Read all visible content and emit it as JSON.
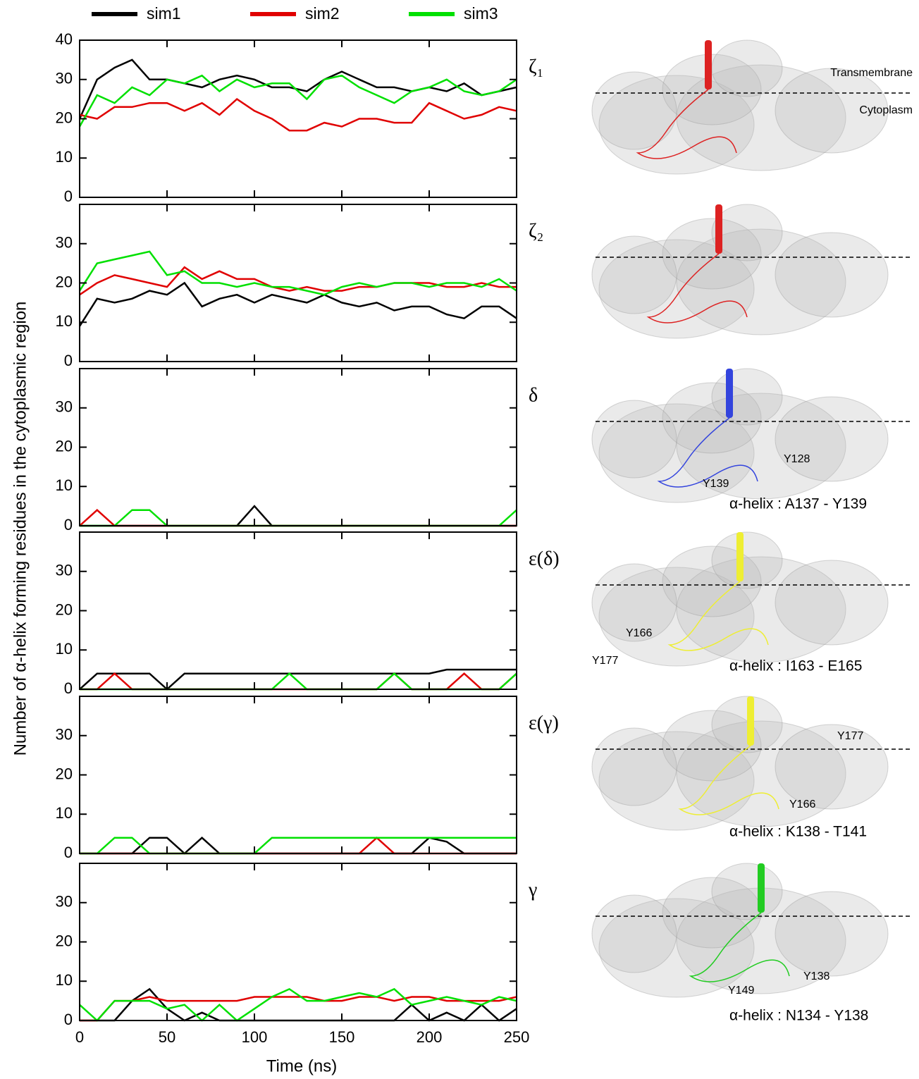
{
  "legend": {
    "series": [
      {
        "name": "sim1",
        "color": "#000000"
      },
      {
        "name": "sim2",
        "color": "#e00000"
      },
      {
        "name": "sim3",
        "color": "#00e000"
      }
    ]
  },
  "ylabel": "Number of α-helix forming residues in the cytoplasmic region",
  "xlabel": "Time (ns)",
  "chart_data": [
    {
      "type": "line",
      "label": "ζ₁",
      "annotations": [
        "Transmembrane",
        "Cytoplasm"
      ],
      "x": [
        0,
        10,
        20,
        30,
        40,
        50,
        60,
        70,
        80,
        90,
        100,
        110,
        120,
        130,
        140,
        150,
        160,
        170,
        180,
        190,
        200,
        210,
        220,
        230,
        240,
        250
      ],
      "xlim": [
        0,
        250
      ],
      "xticks": [
        0,
        50,
        100,
        150,
        200,
        250
      ],
      "ylim": [
        0,
        40
      ],
      "yticks": [
        0,
        10,
        20,
        30,
        40
      ],
      "series": [
        {
          "values": [
            20,
            30,
            33,
            35,
            30,
            30,
            29,
            28,
            30,
            31,
            30,
            28,
            28,
            27,
            30,
            32,
            30,
            28,
            28,
            27,
            28,
            27,
            29,
            26,
            27,
            28
          ]
        },
        {
          "values": [
            21,
            20,
            23,
            23,
            24,
            24,
            22,
            24,
            21,
            25,
            22,
            20,
            17,
            17,
            19,
            18,
            20,
            20,
            19,
            19,
            24,
            22,
            20,
            21,
            23,
            22
          ]
        },
        {
          "values": [
            18,
            26,
            24,
            28,
            26,
            30,
            29,
            31,
            27,
            30,
            28,
            29,
            29,
            25,
            30,
            31,
            28,
            26,
            24,
            27,
            28,
            30,
            27,
            26,
            27,
            30
          ]
        }
      ]
    },
    {
      "type": "line",
      "label": "ζ₂",
      "annotations": [],
      "x": [
        0,
        10,
        20,
        30,
        40,
        50,
        60,
        70,
        80,
        90,
        100,
        110,
        120,
        130,
        140,
        150,
        160,
        170,
        180,
        190,
        200,
        210,
        220,
        230,
        240,
        250
      ],
      "xlim": [
        0,
        250
      ],
      "xticks": [
        0,
        50,
        100,
        150,
        200,
        250
      ],
      "ylim": [
        0,
        40
      ],
      "yticks": [
        0,
        10,
        20,
        30
      ],
      "series": [
        {
          "values": [
            9,
            16,
            15,
            16,
            18,
            17,
            20,
            14,
            16,
            17,
            15,
            17,
            16,
            15,
            17,
            15,
            14,
            15,
            13,
            14,
            14,
            12,
            11,
            14,
            14,
            11
          ]
        },
        {
          "values": [
            17,
            20,
            22,
            21,
            20,
            19,
            24,
            21,
            23,
            21,
            21,
            19,
            18,
            19,
            18,
            18,
            19,
            19,
            20,
            20,
            20,
            19,
            19,
            20,
            19,
            19
          ]
        },
        {
          "values": [
            18,
            25,
            26,
            27,
            28,
            22,
            23,
            20,
            20,
            19,
            20,
            19,
            19,
            18,
            17,
            19,
            20,
            19,
            20,
            20,
            19,
            20,
            20,
            19,
            21,
            18
          ]
        }
      ]
    },
    {
      "type": "line",
      "label": "δ",
      "annotations": [
        "Y128",
        "Y139",
        "α-helix : A137 - Y139"
      ],
      "x": [
        0,
        10,
        20,
        30,
        40,
        50,
        60,
        70,
        80,
        90,
        100,
        110,
        120,
        130,
        140,
        150,
        160,
        170,
        180,
        190,
        200,
        210,
        220,
        230,
        240,
        250
      ],
      "xlim": [
        0,
        250
      ],
      "xticks": [
        0,
        50,
        100,
        150,
        200,
        250
      ],
      "ylim": [
        0,
        40
      ],
      "yticks": [
        0,
        10,
        20,
        30
      ],
      "series": [
        {
          "values": [
            0,
            0,
            0,
            0,
            0,
            0,
            0,
            0,
            0,
            0,
            5,
            0,
            0,
            0,
            0,
            0,
            0,
            0,
            0,
            0,
            0,
            0,
            0,
            0,
            0,
            0
          ]
        },
        {
          "values": [
            0,
            4,
            0,
            0,
            0,
            0,
            0,
            0,
            0,
            0,
            0,
            0,
            0,
            0,
            0,
            0,
            0,
            0,
            0,
            0,
            0,
            0,
            0,
            0,
            0,
            0
          ]
        },
        {
          "values": [
            0,
            0,
            0,
            4,
            4,
            0,
            0,
            0,
            0,
            0,
            0,
            0,
            0,
            0,
            0,
            0,
            0,
            0,
            0,
            0,
            0,
            0,
            0,
            0,
            0,
            4
          ]
        }
      ]
    },
    {
      "type": "line",
      "label": "ε(δ)",
      "annotations": [
        "Y166",
        "Y177",
        "α-helix : I163 - E165"
      ],
      "x": [
        0,
        10,
        20,
        30,
        40,
        50,
        60,
        70,
        80,
        90,
        100,
        110,
        120,
        130,
        140,
        150,
        160,
        170,
        180,
        190,
        200,
        210,
        220,
        230,
        240,
        250
      ],
      "xlim": [
        0,
        250
      ],
      "xticks": [
        0,
        50,
        100,
        150,
        200,
        250
      ],
      "ylim": [
        0,
        40
      ],
      "yticks": [
        0,
        10,
        20,
        30
      ],
      "series": [
        {
          "values": [
            0,
            4,
            4,
            4,
            4,
            0,
            4,
            4,
            4,
            4,
            4,
            4,
            4,
            4,
            4,
            4,
            4,
            4,
            4,
            4,
            4,
            5,
            5,
            5,
            5,
            5
          ]
        },
        {
          "values": [
            0,
            0,
            4,
            0,
            0,
            0,
            0,
            0,
            0,
            0,
            0,
            0,
            0,
            0,
            0,
            0,
            0,
            0,
            4,
            0,
            0,
            0,
            4,
            0,
            0,
            4
          ]
        },
        {
          "values": [
            0,
            0,
            0,
            0,
            0,
            0,
            0,
            0,
            0,
            0,
            0,
            0,
            4,
            0,
            0,
            0,
            0,
            0,
            4,
            0,
            0,
            0,
            0,
            0,
            0,
            4
          ]
        }
      ]
    },
    {
      "type": "line",
      "label": "ε(γ)",
      "annotations": [
        "Y177",
        "Y166",
        "α-helix : K138 - T141"
      ],
      "x": [
        0,
        10,
        20,
        30,
        40,
        50,
        60,
        70,
        80,
        90,
        100,
        110,
        120,
        130,
        140,
        150,
        160,
        170,
        180,
        190,
        200,
        210,
        220,
        230,
        240,
        250
      ],
      "xlim": [
        0,
        250
      ],
      "xticks": [
        0,
        50,
        100,
        150,
        200,
        250
      ],
      "ylim": [
        0,
        40
      ],
      "yticks": [
        0,
        10,
        20,
        30
      ],
      "series": [
        {
          "values": [
            0,
            0,
            0,
            0,
            4,
            4,
            0,
            4,
            0,
            0,
            0,
            0,
            0,
            0,
            0,
            0,
            0,
            0,
            0,
            0,
            4,
            3,
            0,
            0,
            0,
            0
          ]
        },
        {
          "values": [
            0,
            0,
            0,
            0,
            0,
            0,
            0,
            0,
            0,
            0,
            0,
            0,
            0,
            0,
            0,
            0,
            0,
            4,
            0,
            0,
            0,
            0,
            0,
            0,
            0,
            0
          ]
        },
        {
          "values": [
            0,
            0,
            4,
            4,
            0,
            0,
            0,
            0,
            0,
            0,
            0,
            4,
            4,
            4,
            4,
            4,
            4,
            4,
            4,
            4,
            4,
            4,
            4,
            4,
            4,
            4
          ]
        }
      ]
    },
    {
      "type": "line",
      "label": "γ",
      "annotations": [
        "Y138",
        "Y149",
        "α-helix : N134 - Y138"
      ],
      "x": [
        0,
        10,
        20,
        30,
        40,
        50,
        60,
        70,
        80,
        90,
        100,
        110,
        120,
        130,
        140,
        150,
        160,
        170,
        180,
        190,
        200,
        210,
        220,
        230,
        240,
        250
      ],
      "xlim": [
        0,
        250
      ],
      "xticks": [
        0,
        50,
        100,
        150,
        200,
        250
      ],
      "ylim": [
        0,
        40
      ],
      "yticks": [
        0,
        10,
        20,
        30
      ],
      "series": [
        {
          "values": [
            0,
            0,
            0,
            5,
            8,
            3,
            0,
            2,
            0,
            0,
            0,
            0,
            0,
            0,
            0,
            0,
            0,
            0,
            0,
            4,
            0,
            2,
            0,
            4,
            0,
            3
          ]
        },
        {
          "values": [
            0,
            0,
            5,
            5,
            6,
            5,
            5,
            5,
            5,
            5,
            6,
            6,
            6,
            6,
            5,
            5,
            6,
            6,
            5,
            6,
            6,
            5,
            5,
            5,
            5,
            6
          ]
        },
        {
          "values": [
            4,
            0,
            5,
            5,
            5,
            3,
            4,
            0,
            4,
            0,
            3,
            6,
            8,
            5,
            5,
            6,
            7,
            6,
            8,
            4,
            5,
            6,
            5,
            4,
            6,
            5
          ]
        }
      ]
    }
  ]
}
